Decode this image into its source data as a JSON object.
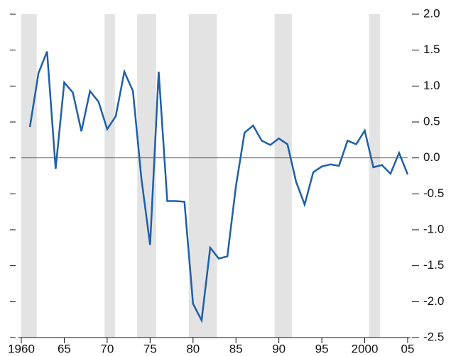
{
  "chart_data": {
    "type": "line",
    "x": [
      1961,
      1962,
      1963,
      1964,
      1965,
      1966,
      1967,
      1968,
      1969,
      1970,
      1971,
      1972,
      1973,
      1974,
      1975,
      1976,
      1977,
      1978,
      1979,
      1980,
      1981,
      1982,
      1983,
      1984,
      1985,
      1986,
      1987,
      1988,
      1989,
      1990,
      1991,
      1992,
      1993,
      1994,
      1995,
      1996,
      1997,
      1998,
      1999,
      2000,
      2001,
      2002,
      2003,
      2004,
      2005
    ],
    "series": [
      {
        "color": "#1f5fa8",
        "values": [
          0.43,
          1.18,
          1.48,
          -0.15,
          1.05,
          0.91,
          0.37,
          0.93,
          0.78,
          0.4,
          0.58,
          1.2,
          0.93,
          -0.3,
          -1.21,
          1.2,
          -0.6,
          -0.6,
          -0.61,
          -2.03,
          -2.26,
          -1.25,
          -1.4,
          -1.37,
          -0.39,
          0.35,
          0.45,
          0.24,
          0.18,
          0.27,
          0.19,
          -0.33,
          -0.65,
          -0.2,
          -0.12,
          -0.09,
          -0.11,
          0.24,
          0.19,
          0.38,
          -0.13,
          -0.1,
          -0.22,
          0.07,
          -0.23
        ]
      }
    ],
    "xlim": [
      1960,
      2005
    ],
    "xticks": [
      {
        "value": 1960,
        "label": "1960"
      },
      {
        "value": 1965,
        "label": "65"
      },
      {
        "value": 1970,
        "label": "70"
      },
      {
        "value": 1975,
        "label": "75"
      },
      {
        "value": 1980,
        "label": "80"
      },
      {
        "value": 1985,
        "label": "85"
      },
      {
        "value": 1990,
        "label": "90"
      },
      {
        "value": 1995,
        "label": "95"
      },
      {
        "value": 2000,
        "label": "2000"
      },
      {
        "value": 2005,
        "label": "05"
      }
    ],
    "ylim": [
      -2.5,
      2.0
    ],
    "yticks": [
      {
        "value": 2,
        "label": "2.0"
      },
      1.5,
      {
        "value": 1,
        "label": "1.0"
      },
      0.5,
      {
        "value": 0,
        "label": "0.0"
      },
      -0.5,
      {
        "value": -1,
        "label": "-1.0"
      },
      -1.5,
      {
        "value": -2,
        "label": "-2.0"
      },
      -2.5
    ],
    "shaded": [
      [
        1960,
        1961.8
      ],
      [
        1969.7,
        1970.9
      ],
      [
        1973.5,
        1975.7
      ],
      [
        1979.5,
        1982.8
      ],
      [
        1989.5,
        1991.5
      ],
      [
        2000.5,
        2001.8
      ]
    ],
    "shade_color": "#e3e3e3",
    "zero_line": true
  }
}
